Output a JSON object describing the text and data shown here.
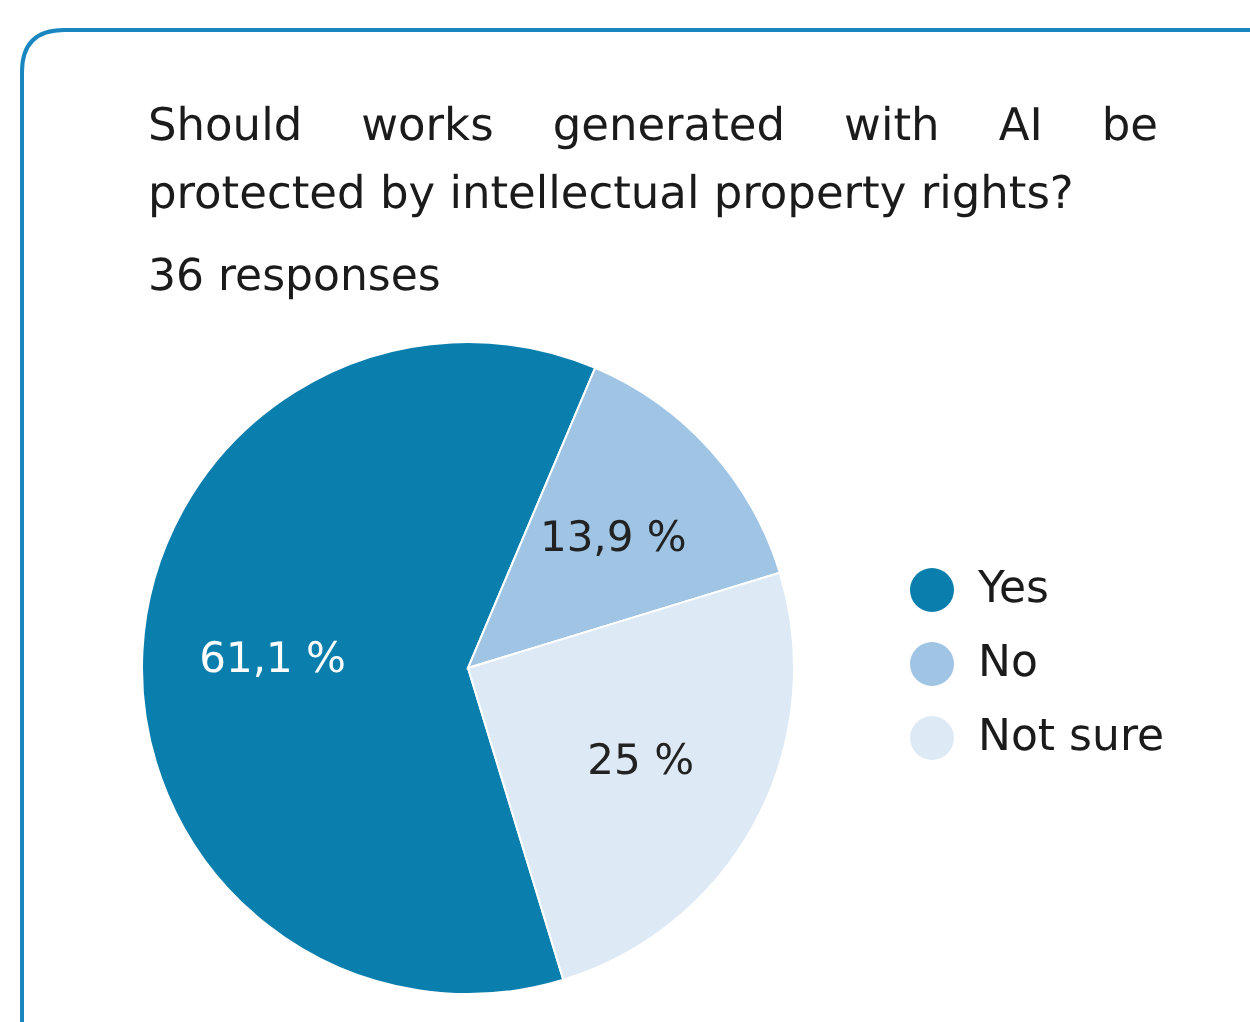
{
  "chart_data": {
    "type": "pie",
    "title": "Should works generated with AI be protected by intellectual property rights?",
    "subtitle": "36 responses",
    "categories": [
      "Yes",
      "No",
      "Not sure"
    ],
    "values": [
      61.1,
      13.9,
      25
    ],
    "value_labels": [
      "61,1 %",
      "13,9 %",
      "25 %"
    ],
    "colors": [
      "#0a7fad",
      "#9fc4e4",
      "#dde9f5"
    ],
    "legend": "right"
  }
}
